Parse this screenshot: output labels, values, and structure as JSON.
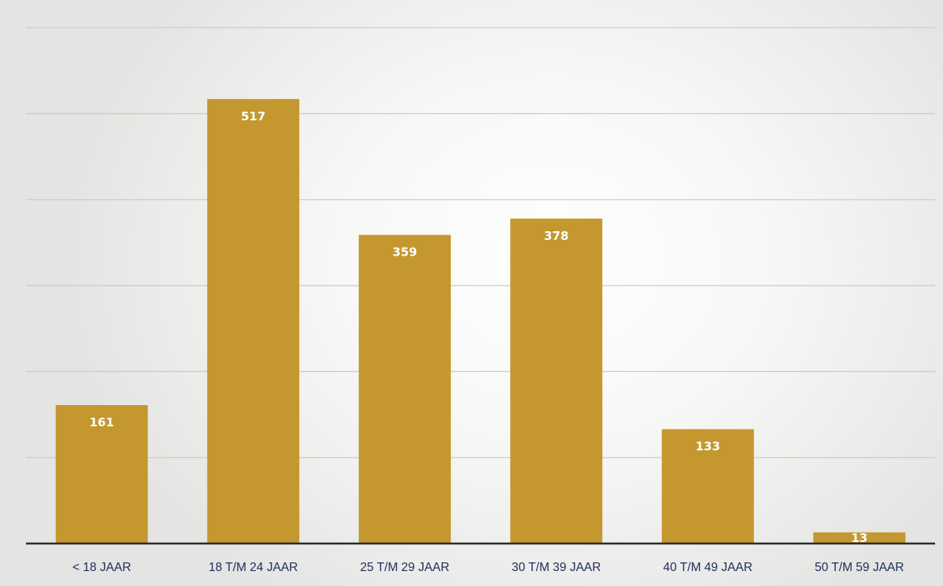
{
  "chart_data": {
    "type": "bar",
    "title": "",
    "xlabel": "",
    "ylabel": "",
    "categories": [
      "< 18 JAAR",
      "18 T/M 24 JAAR",
      "25 T/M 29 JAAR",
      "30 T/M 39 JAAR",
      "40 T/M 49 JAAR",
      "50 T/M 59 JAAR"
    ],
    "values": [
      161,
      517,
      359,
      378,
      133,
      13
    ],
    "data_labels": [
      "161",
      "517",
      "359",
      "378",
      "133",
      "13"
    ],
    "ylim": [
      0,
      600
    ],
    "gridlines": [
      100,
      200,
      300,
      400,
      500,
      600
    ],
    "grid": true,
    "legend": "none",
    "colors": {
      "bar": "#c4982f",
      "axis": "#2b2b2b",
      "grid": "#c9c9c9",
      "data_label": "#ffffff",
      "tick_label": "#1f2d5a"
    }
  }
}
